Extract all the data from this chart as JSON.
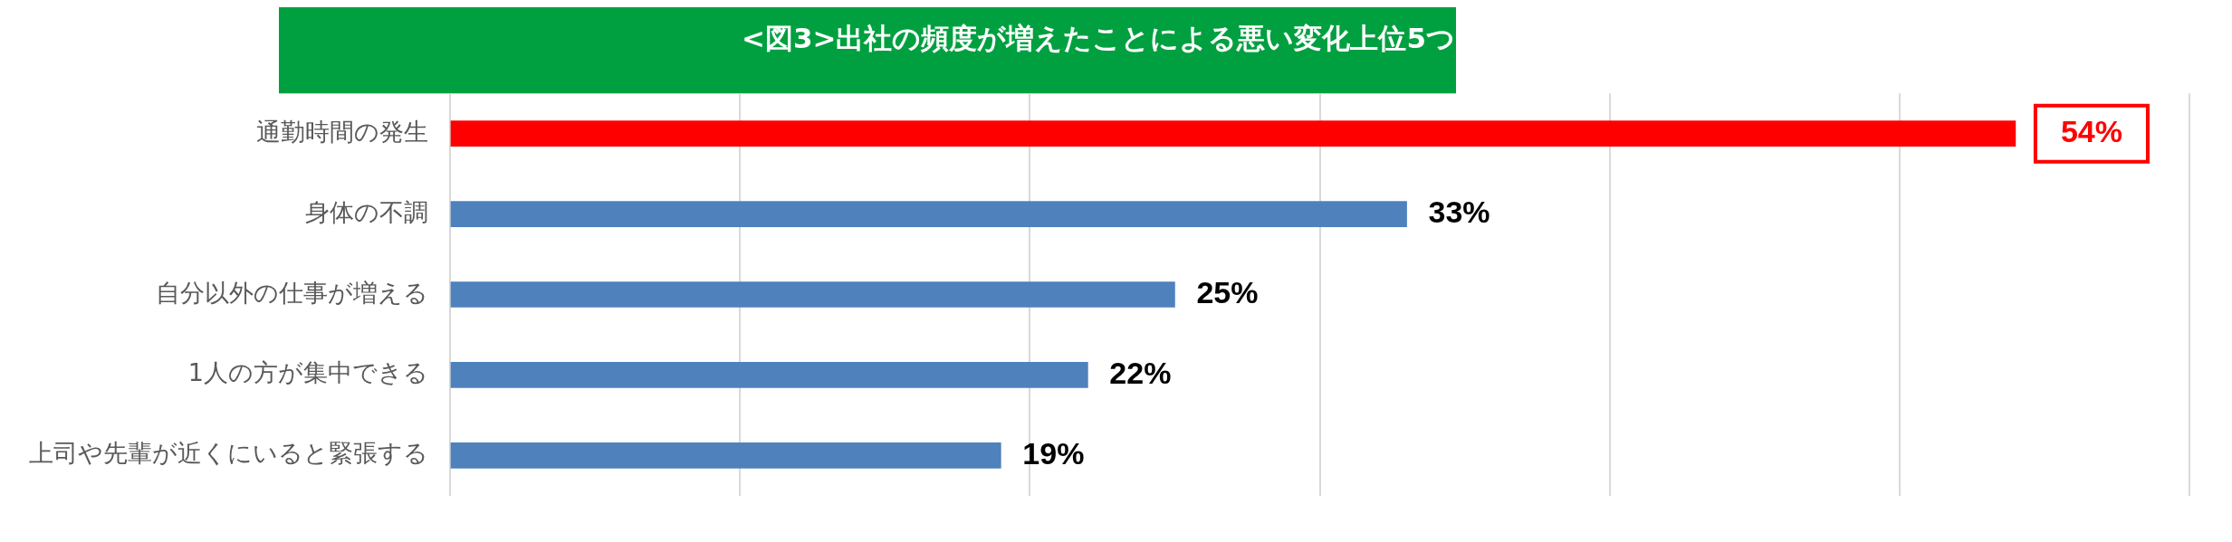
{
  "chart_data": {
    "type": "bar",
    "orientation": "horizontal",
    "title": "<図3>出社の頻度が増えたことによる悪い変化上位5つ",
    "categories": [
      "通勤時間の発生",
      "身体の不調",
      "自分以外の仕事が増える",
      "1人の方が集中できる",
      "上司や先輩が近くにいると緊張する"
    ],
    "values": [
      54,
      33,
      25,
      22,
      19
    ],
    "colors": [
      "#ff0000",
      "#4f81bd",
      "#4f81bd",
      "#4f81bd",
      "#4f81bd"
    ],
    "value_labels": [
      "54%",
      "33%",
      "25%",
      "22%",
      "19%"
    ],
    "xlim": [
      0,
      60
    ],
    "xticks": [
      {
        "value": 0,
        "label": null
      },
      {
        "value": 10,
        "label": null
      },
      {
        "value": 20,
        "label": null
      },
      {
        "value": 30,
        "label": null
      },
      {
        "value": 40,
        "label": null
      },
      {
        "value": 50,
        "label": null
      },
      {
        "value": 60,
        "label": null
      }
    ],
    "grid": "x",
    "legend": false
  }
}
